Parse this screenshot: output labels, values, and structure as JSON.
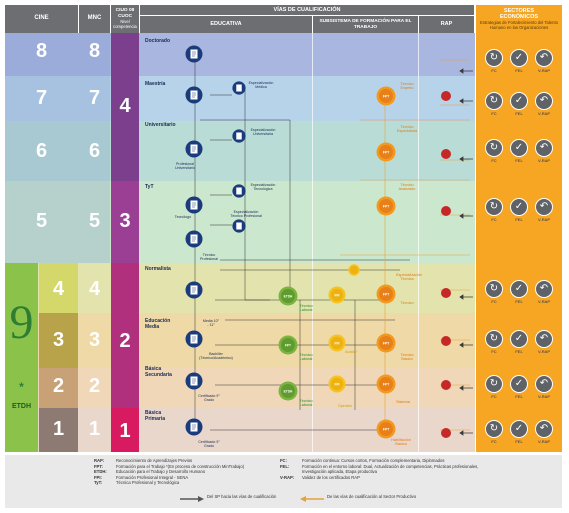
{
  "header": {
    "cine": "CINE",
    "mnc": "MNC",
    "ciuo": "CIUO 08 CUOC",
    "ciuo_sub": "Nivel competencia",
    "vias": "VÍAS DE CUALIFICACIÓN",
    "educativa": "EDUCATIVA",
    "subsistema": "SUBSISTEMA DE FORMACIÓN PARA EL TRABAJO",
    "rap": "RAP",
    "sectores": "SECTORES ECONÓMICOS",
    "sectores_sub": "Estrategias de Fortalecimiento del Talento Humano en las Organizaciones"
  },
  "cine_levels": [
    "8",
    "7",
    "6",
    "5",
    "4",
    "3",
    "2",
    "1"
  ],
  "mnc_levels": [
    "8",
    "7",
    "6",
    "5",
    "4",
    "3",
    "2",
    "1"
  ],
  "ciuo_levels": [
    "4",
    "3",
    "2",
    "1"
  ],
  "etdh": {
    "nine": "9",
    "star": "*",
    "label": "ETDH"
  },
  "edu_levels": {
    "doctorado": "Doctorado",
    "maestria": "Maestría",
    "universitario": "Universitario",
    "tyt": "TyT",
    "normalista": "Normalista",
    "media": "Educación Media",
    "basica_sec": "Básica Secundaria",
    "basica_pri": "Básica Primaria"
  },
  "edu_nodes": {
    "esp_medica": "Especialización Médica",
    "esp_universitaria": "Especialización Universitaria",
    "prof_universitario": "Profesional Universitario",
    "esp_tecnologica": "Especialización Tecnológica",
    "tecnologo": "Tecnólogo",
    "esp_tec_prof": "Especialización Técnico Profesional",
    "tecnico_profesional": "Técnico Profesional",
    "media_grados": "Media 10° - 11°",
    "bachiller": "Bachiller (Técnico/Académico)",
    "cert_9": "Certificado 9° Grado",
    "cert_5": "Certificado 5° Grado"
  },
  "sft_nodes": {
    "tec_experto": "Técnico Experto",
    "tec_especialista": "Técnico Especialista",
    "tec_avanzado": "Técnico Avanzado",
    "tec_especializado": "Especialización Técnica",
    "tec_laboral_1": "Técnico Laboral",
    "tec_laboral_2": "Técnico Laboral",
    "tec_laboral_3": "Técnico Laboral",
    "tecnico": "Técnico",
    "tec_basico": "Técnico Básico",
    "auxiliar": "Auxiliar",
    "operario": "Operario",
    "sistema": "Sistema",
    "hab_basica": "Habilitación Básica",
    "fpt": "FPT",
    "fpi": "FPI",
    "etdh": "ETDH"
  },
  "sector_labels": [
    "FC",
    "FEL",
    "V-RAP"
  ],
  "legend": {
    "items": [
      {
        "k": "RAP:",
        "v": "Reconocimiento de Aprendizajes Previos"
      },
      {
        "k": "FPT:",
        "v": "Formación para el Trabajo *(En proceso de construcción MinTrabajo)"
      },
      {
        "k": "ETDH:",
        "v": "Educación para el Trabajo y Desarrollo Humano"
      },
      {
        "k": "FPI:",
        "v": "Formación Profesional Integral - SENA"
      },
      {
        "k": "TyT:",
        "v": "Técnica Profesional y Tecnológica"
      }
    ],
    "items2": [
      {
        "k": "FC:",
        "v": "Formación continua: Cursos cortos, Formación complementaria, Diplomados"
      },
      {
        "k": "FEL:",
        "v": "Formación en el entorno laboral: Dual, Actualización de competencias, Prácticas profesionales,"
      },
      {
        "k": "",
        "v": "Investigación aplicada, Etapa productiva"
      },
      {
        "k": "V-RAP:",
        "v": "Validez de los certificados RAP"
      }
    ],
    "arrow1": "Del SP hacia las vías de cualificación",
    "arrow2": "De las vías de cualificación al Sector Productivo"
  },
  "colors": {
    "header_gray": "#6d6e71",
    "navy": "#1b3c7c",
    "orange": "#f39a1e",
    "green": "#7cb342",
    "purple": "#7b3f8e",
    "magenta": "#c2185b",
    "red": "#c62828",
    "sector_orange": "#f6a623"
  }
}
